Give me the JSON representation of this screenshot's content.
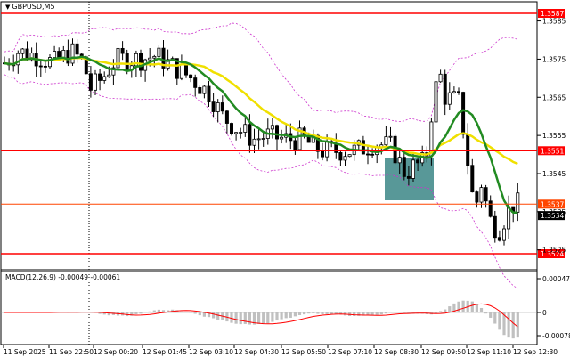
{
  "window": {
    "symbol_title": "GBPUSD,M5"
  },
  "macd": {
    "label": "MACD(12,26,9) -0.00049 -0.00061",
    "axis_top": "0.00047",
    "axis_zero": "0",
    "axis_bottom": "-0.00078"
  },
  "price_axis": {
    "ticks": [
      "1.3585",
      "1.3575",
      "1.3565",
      "1.3555",
      "1.3545",
      "1.3535",
      "1.3525"
    ],
    "levels": [
      {
        "value": "1.3587",
        "color": "#ff0000"
      },
      {
        "value": "1.3551",
        "color": "#ff0000"
      },
      {
        "value": "1.3537",
        "color": "#ff4500"
      },
      {
        "value": "1.3524",
        "color": "#ff0000"
      }
    ],
    "current_price": "1.3534"
  },
  "time_axis": [
    "11 Sep 2025",
    "11 Sep 22:50",
    "12 Sep 00:20",
    "12 Sep 01:45",
    "12 Sep 03:10",
    "12 Sep 04:30",
    "12 Sep 05:50",
    "12 Sep 07:10",
    "12 Sep 08:30",
    "12 Sep 09:50",
    "12 Sep 11:10",
    "12 Sep 12:30"
  ],
  "colors": {
    "ma_fast": "#228b22",
    "ma_slow": "#f0e000",
    "bands": "#cc33cc",
    "zone": "#3b8686",
    "level": "#ff0000"
  },
  "chart_data": {
    "type": "candlestick",
    "series": [
      {
        "name": "GBPUSD,M5",
        "type": "candlestick"
      }
    ],
    "price_range": [
      1.3519,
      1.3591
    ],
    "levels": [
      1.3587,
      1.3551,
      1.3537,
      1.3524
    ],
    "zone": {
      "x_from": "12 Sep 08:30",
      "x_to": "12 Sep 09:50",
      "y_from": 1.3543,
      "y_to": 1.3552
    }
  }
}
